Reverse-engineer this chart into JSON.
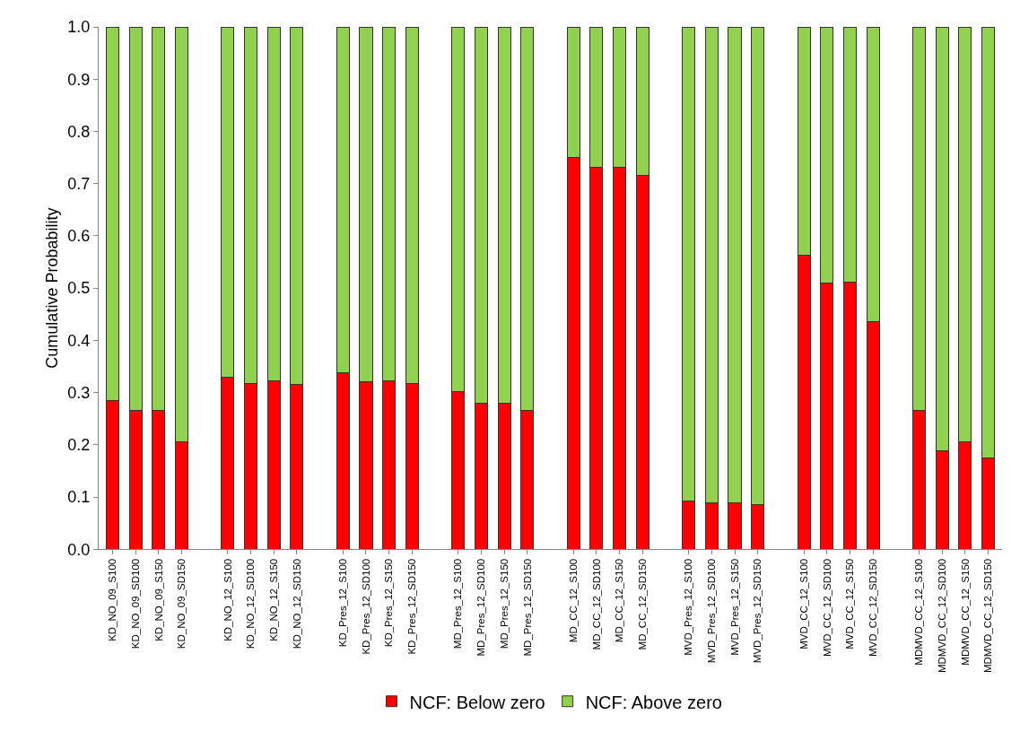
{
  "chart_data": {
    "type": "bar",
    "stacked": true,
    "ylabel": "Cumulative Probability",
    "categories": [
      "KD_NO_09_S100",
      "KD_NO_09_SD100",
      "KD_NO_09_S150",
      "KD_NO_09_SD150",
      null,
      "KD_NO_12_S100",
      "KD_NO_12_SD100",
      "KD_NO_12_S150",
      "KD_NO_12_SD150",
      null,
      "KD_Pres_12_S100",
      "KD_Pres_12_SD100",
      "KD_Pres_12_S150",
      "KD_Pres_12_SD150",
      null,
      "MD_Pres_12_S100",
      "MD_Pres_12_SD100",
      "MD_Pres_12_S150",
      "MD_Pres_12_SD150",
      null,
      "MD_CC_12_S100",
      "MD_CC_12_SD100",
      "MD_CC_12_S150",
      "MD_CC_12_SD150",
      null,
      "MVD_Pres_12_S100",
      "MVD_Pres_12_SD100",
      "MVD_Pres_12_S150",
      "MVD_Pres_12_SD150",
      null,
      "MVD_CC_12_S100",
      "MVD_CC_12_SD100",
      "MVD_CC_12_S150",
      "MVD_CC_12_SD150",
      null,
      "MDMVD_CC_12_S100",
      "MDMVD_CC_12_SD100",
      "MDMVD_CC_12_S150",
      "MDMVD_CC_12_SD150"
    ],
    "series": [
      {
        "name": "NCF: Below zero",
        "color": "#ff0000",
        "values": [
          0.285,
          0.265,
          0.265,
          0.205,
          null,
          0.33,
          0.318,
          0.322,
          0.315,
          null,
          0.338,
          0.32,
          0.323,
          0.318,
          null,
          0.302,
          0.28,
          0.28,
          0.265,
          null,
          0.75,
          0.732,
          0.732,
          0.716,
          null,
          0.092,
          0.088,
          0.088,
          0.085,
          null,
          0.563,
          0.51,
          0.512,
          0.435,
          null,
          0.265,
          0.188,
          0.205,
          0.175
        ]
      },
      {
        "name": "NCF: Above zero",
        "color": "#92d050",
        "values": [
          0.715,
          0.735,
          0.735,
          0.795,
          null,
          0.67,
          0.682,
          0.678,
          0.685,
          null,
          0.662,
          0.68,
          0.677,
          0.682,
          null,
          0.698,
          0.72,
          0.72,
          0.735,
          null,
          0.25,
          0.268,
          0.268,
          0.284,
          null,
          0.908,
          0.912,
          0.912,
          0.915,
          null,
          0.437,
          0.49,
          0.488,
          0.565,
          null,
          0.735,
          0.812,
          0.795,
          0.825
        ]
      }
    ],
    "ylim": [
      0,
      1
    ],
    "yticks": [
      {
        "value": 0,
        "label": "0.0"
      },
      {
        "value": 0.1,
        "label": "0.1"
      },
      {
        "value": 0.2,
        "label": "0.2"
      },
      {
        "value": 0.3,
        "label": "0.3"
      },
      {
        "value": 0.4,
        "label": "0.4"
      },
      {
        "value": 0.5,
        "label": "0.5"
      },
      {
        "value": 0.6,
        "label": "0.6"
      },
      {
        "value": 0.7,
        "label": "0.7"
      },
      {
        "value": 0.8,
        "label": "0.8"
      },
      {
        "value": 0.9,
        "label": "0.9"
      },
      {
        "value": 1,
        "label": "1.0"
      }
    ],
    "grid": false,
    "legend": "bottom"
  }
}
